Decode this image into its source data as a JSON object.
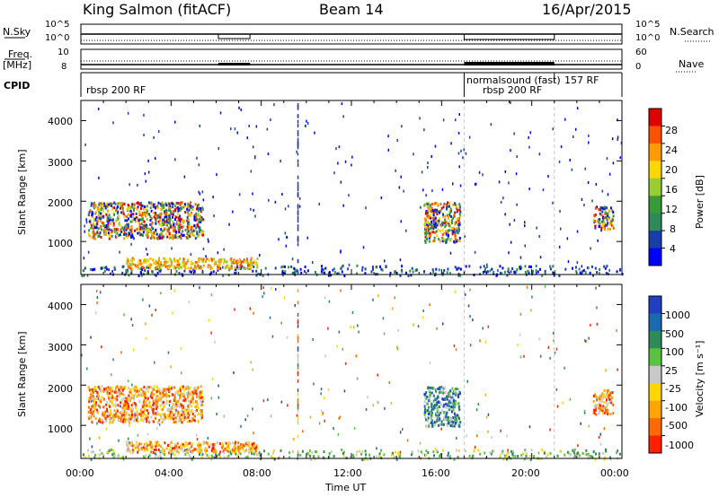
{
  "header": {
    "station": "King Salmon (fitACF)",
    "beam": "Beam 14",
    "date": "16/Apr/2015"
  },
  "summary": {
    "nsky_label": "N.Sky",
    "nsky_ticks": [
      "10^5",
      "10^0"
    ],
    "nsearch_label": "N.Search",
    "nsearch_ticks": [
      "10^5",
      "10^0"
    ],
    "freq_label_top": "Freq.",
    "freq_label_unit": "[MHz]",
    "freq_ticks": [
      "10",
      "8"
    ],
    "nave_label": "Nave",
    "nave_ticks": [
      "60",
      "0"
    ],
    "cpid_label": "CPID",
    "cpid_segments": [
      {
        "label": "rbsp 200 RF",
        "start": 0,
        "end": 17
      },
      {
        "label": "normalsound (fast)",
        "start": 17,
        "end": 21
      },
      {
        "label": "rbsp 200 RF",
        "start": 17,
        "end": 21
      },
      {
        "label": "157 RF",
        "start": 21,
        "end": 24
      }
    ]
  },
  "chart_data": [
    {
      "type": "heatmap",
      "name": "power",
      "ylabel": "Slant Range [km]",
      "ylim": [
        180,
        4500
      ],
      "yticks": [
        "1000",
        "2000",
        "3000",
        "4000"
      ],
      "xlim": [
        0,
        24
      ],
      "colorbar_label": "Power [dB]",
      "colorbar_ticks": [
        "28",
        "24",
        "20",
        "16",
        "12",
        "8",
        "4"
      ],
      "colorbar_colors": [
        "#e00000",
        "#ff5000",
        "#ff9a00",
        "#ffd700",
        "#9acd32",
        "#3a9a3a",
        "#2e8b57",
        "#1a3ea8",
        "#0000ff"
      ],
      "regions": [
        {
          "t0": 0.3,
          "t1": 5.4,
          "r0": 1100,
          "r1": 2000,
          "level": "mixed"
        },
        {
          "t0": 2.0,
          "t1": 7.8,
          "r0": 350,
          "r1": 620,
          "level": "high"
        },
        {
          "t0": 15.2,
          "t1": 16.8,
          "r0": 1000,
          "r1": 2000,
          "level": "mixed"
        },
        {
          "t0": 22.7,
          "t1": 23.6,
          "r0": 1300,
          "r1": 1900,
          "level": "mixed"
        }
      ]
    },
    {
      "type": "heatmap",
      "name": "velocity",
      "ylabel": "Slant Range [km]",
      "ylim": [
        180,
        4500
      ],
      "yticks": [
        "1000",
        "2000",
        "3000",
        "4000"
      ],
      "xlim": [
        0,
        24
      ],
      "colorbar_label": "Velocity [m s⁻¹]",
      "colorbar_ticks": [
        "1000",
        "500",
        "100",
        "25",
        "-25",
        "-100",
        "-500",
        "-1000"
      ],
      "colorbar_colors": [
        "#2040c0",
        "#1a6ab0",
        "#2e8b57",
        "#5cc040",
        "#c8c8c8",
        "#ffd700",
        "#ffa500",
        "#ff6a00",
        "#ff2000"
      ],
      "regions": [
        {
          "t0": 0.3,
          "t1": 5.4,
          "r0": 1100,
          "r1": 2000,
          "level": "neg"
        },
        {
          "t0": 2.0,
          "t1": 7.8,
          "r0": 350,
          "r1": 620,
          "level": "neg"
        },
        {
          "t0": 15.2,
          "t1": 16.8,
          "r0": 1000,
          "r1": 2000,
          "level": "pos"
        },
        {
          "t0": 22.7,
          "t1": 23.6,
          "r0": 1300,
          "r1": 1900,
          "level": "neg"
        }
      ]
    }
  ],
  "xaxis": {
    "ticks": [
      "00:00",
      "04:00",
      "08:00",
      "12:00",
      "16:00",
      "20:00",
      "00:00"
    ],
    "label": "Time UT"
  }
}
